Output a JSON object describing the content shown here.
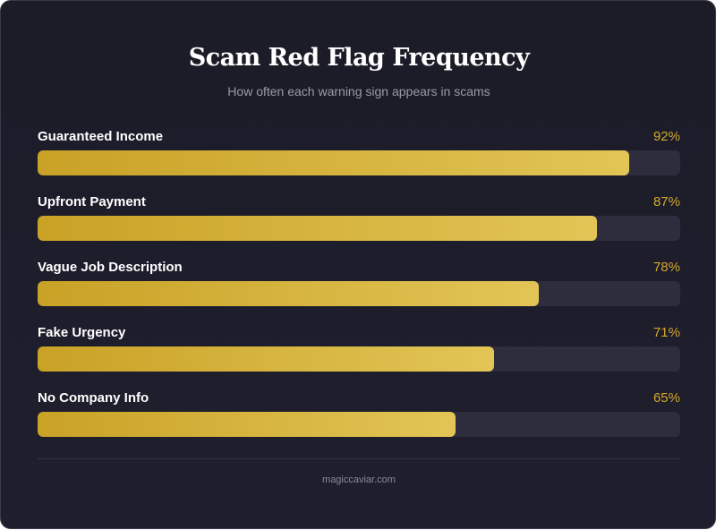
{
  "colors": {
    "background": "#1e1e2e",
    "track": "#2d2d3d",
    "fill_start": "#c9a226",
    "fill_end": "#e2c556",
    "value_text": "#d4a82a"
  },
  "footer": "magiccaviar.com",
  "chart_data": {
    "type": "bar",
    "orientation": "horizontal",
    "title": "Scam Red Flag Frequency",
    "subtitle": "How often each warning sign appears in scams",
    "categories": [
      "Guaranteed Income",
      "Upfront Payment",
      "Vague Job Description",
      "Fake Urgency",
      "No Company Info"
    ],
    "values": [
      92,
      87,
      78,
      71,
      65
    ],
    "value_labels": [
      "92%",
      "87%",
      "78%",
      "71%",
      "65%"
    ],
    "unit": "%",
    "xlim": [
      0,
      100
    ],
    "grid": false,
    "legend": "none"
  }
}
